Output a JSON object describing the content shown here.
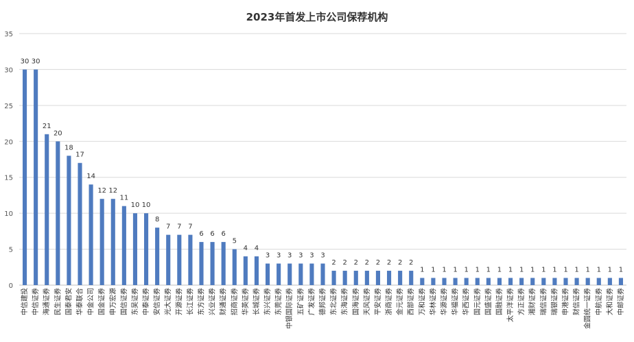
{
  "chart_data": {
    "type": "bar",
    "title": "2023年首发上市公司保荐机构",
    "xlabel": "",
    "ylabel": "",
    "ylim": [
      0,
      35
    ],
    "yticks": [
      0,
      5,
      10,
      15,
      20,
      25,
      30,
      35
    ],
    "grid": true,
    "legend": "none",
    "bar_color": "#4f7bbf",
    "categories": [
      "中信建投",
      "中信证券",
      "海通证券",
      "民生证券",
      "国泰君安",
      "华泰联合",
      "中金公司",
      "国金证券",
      "申万宏源",
      "国信证券",
      "东吴证券",
      "中泰证券",
      "安信证券",
      "光大证券",
      "开源证券",
      "长江证券",
      "东方证券",
      "兴业证券",
      "财通证券",
      "招商证券",
      "华英证券",
      "长城证券",
      "东兴证券",
      "东莞证券",
      "中银国际证券",
      "五矿证券",
      "广发证券",
      "德邦证券",
      "东北证券",
      "东海证券",
      "国海证券",
      "天风证券",
      "平安证券",
      "浙商证券",
      "金元证券",
      "西部证券",
      "万和证券",
      "华林证券",
      "华源证券",
      "华福证券",
      "华西证券",
      "国元证券",
      "国盛证券",
      "国融证券",
      "太平洋证券",
      "方正证券",
      "湘财证券",
      "瑞信证券",
      "瑞银证券",
      "申港证券",
      "财信证券",
      "金圆统一证券",
      "中航证券",
      "大和证券",
      "中邮证券"
    ],
    "values": [
      30,
      30,
      21,
      20,
      18,
      17,
      14,
      12,
      12,
      11,
      10,
      10,
      8,
      7,
      7,
      7,
      6,
      6,
      6,
      5,
      4,
      4,
      3,
      3,
      3,
      3,
      3,
      3,
      2,
      2,
      2,
      2,
      2,
      2,
      2,
      2,
      1,
      1,
      1,
      1,
      1,
      1,
      1,
      1,
      1,
      1,
      1,
      1,
      1,
      1,
      1,
      1,
      1,
      1,
      1
    ]
  }
}
